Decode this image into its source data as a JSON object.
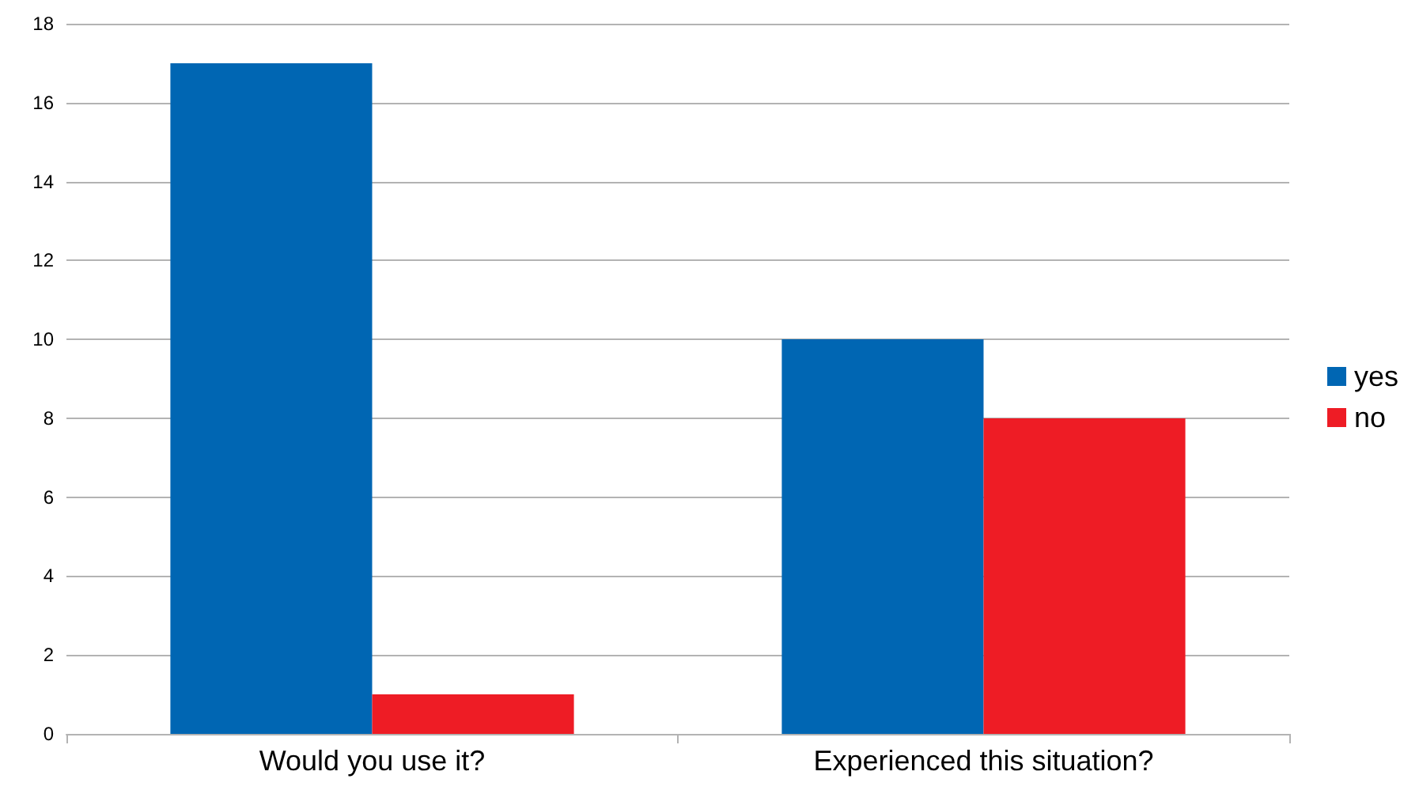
{
  "chart_data": {
    "type": "bar",
    "categories": [
      "Would you use it?",
      "Experienced this situation?"
    ],
    "series": [
      {
        "name": "yes",
        "color": "#0066b3",
        "values": [
          17,
          10
        ]
      },
      {
        "name": "no",
        "color": "#ee1c25",
        "values": [
          1,
          8
        ]
      }
    ],
    "ylim": [
      0,
      18
    ],
    "yticks": [
      0,
      2,
      4,
      6,
      8,
      10,
      12,
      14,
      16,
      18
    ],
    "grid": "y",
    "legend": "right"
  }
}
